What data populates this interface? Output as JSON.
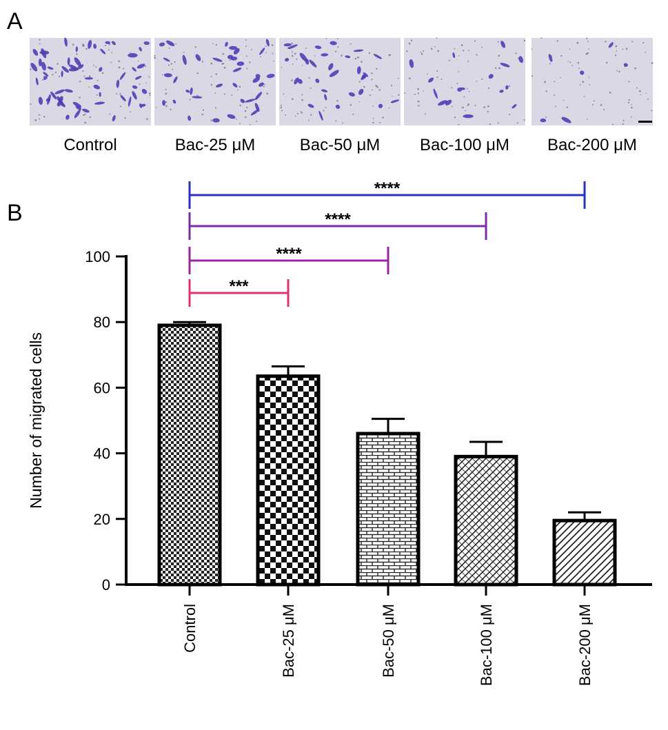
{
  "panel_a": {
    "letter": "A",
    "micrographs": [
      {
        "label": "Control",
        "cell_count": 60
      },
      {
        "label": "Bac-25 μM",
        "cell_count": 36
      },
      {
        "label": "Bac-50 μM",
        "cell_count": 30
      },
      {
        "label": "Bac-100 μM",
        "cell_count": 16
      },
      {
        "label": "Bac-200 μM",
        "cell_count": 6
      }
    ],
    "stain_color": "#4f3fb5",
    "background_color": "#d9d8e4"
  },
  "panel_b": {
    "letter": "B"
  },
  "chart_data": {
    "type": "bar",
    "title": "",
    "xlabel": "",
    "ylabel": "Number of migrated cells",
    "ylim": [
      0,
      100
    ],
    "yticks": [
      0,
      20,
      40,
      60,
      80,
      100
    ],
    "categories": [
      "Control",
      "Bac-25 μM",
      "Bac-50 μM",
      "Bac-100 μM",
      "Bac-200 μM"
    ],
    "values": [
      79,
      63.5,
      46,
      39,
      19.5
    ],
    "errors": [
      1,
      3,
      4.5,
      4.5,
      2.5
    ],
    "patterns": [
      "fine-checker",
      "checker",
      "brick",
      "diagonal-crosshatch",
      "diagonal-lines"
    ],
    "grid": false,
    "significance": [
      {
        "from": "Control",
        "to": "Bac-25 μM",
        "label": "***",
        "color": "#e0306f"
      },
      {
        "from": "Control",
        "to": "Bac-50 μM",
        "label": "****",
        "color": "#9b23a8"
      },
      {
        "from": "Control",
        "to": "Bac-100 μM",
        "label": "****",
        "color": "#7d2aa8"
      },
      {
        "from": "Control",
        "to": "Bac-200 μM",
        "label": "****",
        "color": "#2a2fc4"
      }
    ]
  }
}
